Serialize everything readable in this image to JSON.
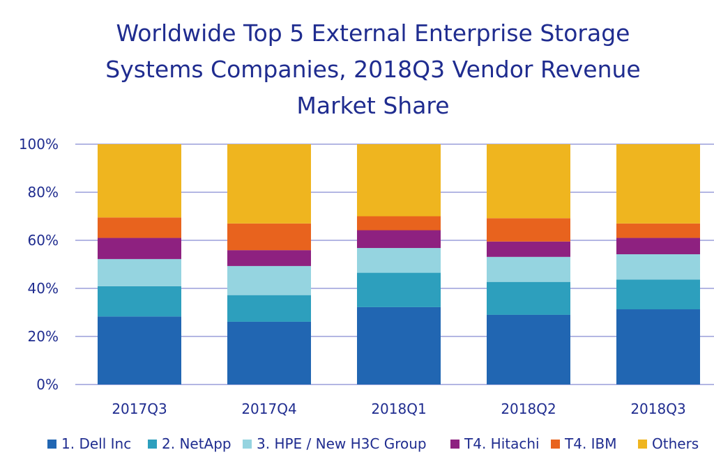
{
  "chart_data": {
    "type": "bar",
    "stacked": true,
    "title_lines": [
      "Worldwide Top 5 External Enterprise Storage",
      "Systems Companies, 2018Q3 Vendor Revenue",
      "Market Share"
    ],
    "categories": [
      "2017Q3",
      "2017Q4",
      "2018Q1",
      "2018Q2",
      "2018Q3"
    ],
    "ylim": [
      0,
      100
    ],
    "yticks": [
      "0%",
      "20%",
      "40%",
      "60%",
      "80%",
      "100%"
    ],
    "grid": true,
    "legend_position": "bottom",
    "series": [
      {
        "name": "1. Dell Inc",
        "color": "#2166b2",
        "values": [
          28.3,
          26.1,
          32.2,
          29.0,
          31.3
        ]
      },
      {
        "name": "2. NetApp",
        "color": "#2d9fbd",
        "values": [
          12.6,
          11.1,
          14.3,
          13.7,
          12.4
        ]
      },
      {
        "name": "3. HPE / New H3C Group",
        "color": "#95d4e0",
        "values": [
          11.3,
          12.1,
          10.3,
          10.4,
          10.5
        ]
      },
      {
        "name": "T4. Hitachi",
        "color": "#8e2180",
        "values": [
          8.8,
          6.6,
          7.4,
          6.4,
          6.8
        ]
      },
      {
        "name": "T4. IBM",
        "color": "#e8631e",
        "values": [
          8.5,
          11.1,
          5.8,
          9.7,
          6.0
        ]
      },
      {
        "name": "Others",
        "color": "#efb51f",
        "values": [
          30.5,
          33.0,
          30.0,
          30.8,
          33.0
        ]
      }
    ]
  }
}
